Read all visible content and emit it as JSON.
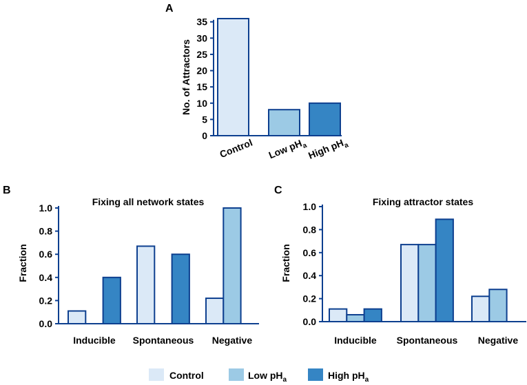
{
  "colors": {
    "control": "#dbe9f7",
    "low": "#9ccae5",
    "high": "#3585c4",
    "edge": "#0d3f8f"
  },
  "legend": [
    {
      "name": "Control",
      "base": "Control",
      "sub": ""
    },
    {
      "name": "Low pHa",
      "base": "Low pH",
      "sub": "a"
    },
    {
      "name": "High pHa",
      "base": "High pH",
      "sub": "a"
    }
  ],
  "chart_data": [
    {
      "panel": "A",
      "type": "bar",
      "title": "",
      "ylabel": "No. of Attractors",
      "xlabel": "",
      "ylim": [
        0,
        36
      ],
      "yticks": [
        0,
        5,
        10,
        15,
        20,
        25,
        30,
        35
      ],
      "categories": [
        {
          "name": "Control",
          "base": "Control",
          "sub": ""
        },
        {
          "name": "Low pHa",
          "base": "Low pH",
          "sub": "a"
        },
        {
          "name": "High pHa",
          "base": "High pH",
          "sub": "a"
        }
      ],
      "values": [
        36,
        8,
        10
      ]
    },
    {
      "panel": "B",
      "type": "bar",
      "title": "Fixing all network states",
      "ylabel": "Fraction",
      "xlabel": "",
      "ylim": [
        0,
        1.0
      ],
      "yticks": [
        "0.0",
        "0.2",
        "0.4",
        "0.6",
        "0.8",
        "1.0"
      ],
      "categories": [
        "Inducible",
        "Spontaneous",
        "Negative"
      ],
      "series": [
        {
          "name": "Control",
          "values": [
            0.11,
            0.67,
            0.22
          ]
        },
        {
          "name": "Low pHa",
          "values": [
            0,
            0,
            1.0
          ]
        },
        {
          "name": "High pHa",
          "values": [
            0.4,
            0.6,
            0
          ]
        }
      ]
    },
    {
      "panel": "C",
      "type": "bar",
      "title": "Fixing attractor states",
      "ylabel": "Fraction",
      "xlabel": "",
      "ylim": [
        0,
        1.0
      ],
      "yticks": [
        "0.0",
        "0.2",
        "0.4",
        "0.6",
        "0.8",
        "1.0"
      ],
      "categories": [
        "Inducible",
        "Spontaneous",
        "Negative"
      ],
      "series": [
        {
          "name": "Control",
          "values": [
            0.11,
            0.67,
            0.22
          ]
        },
        {
          "name": "Low pHa",
          "values": [
            0.06,
            0.67,
            0.28
          ]
        },
        {
          "name": "High pHa",
          "values": [
            0.11,
            0.89,
            0
          ]
        }
      ]
    }
  ]
}
